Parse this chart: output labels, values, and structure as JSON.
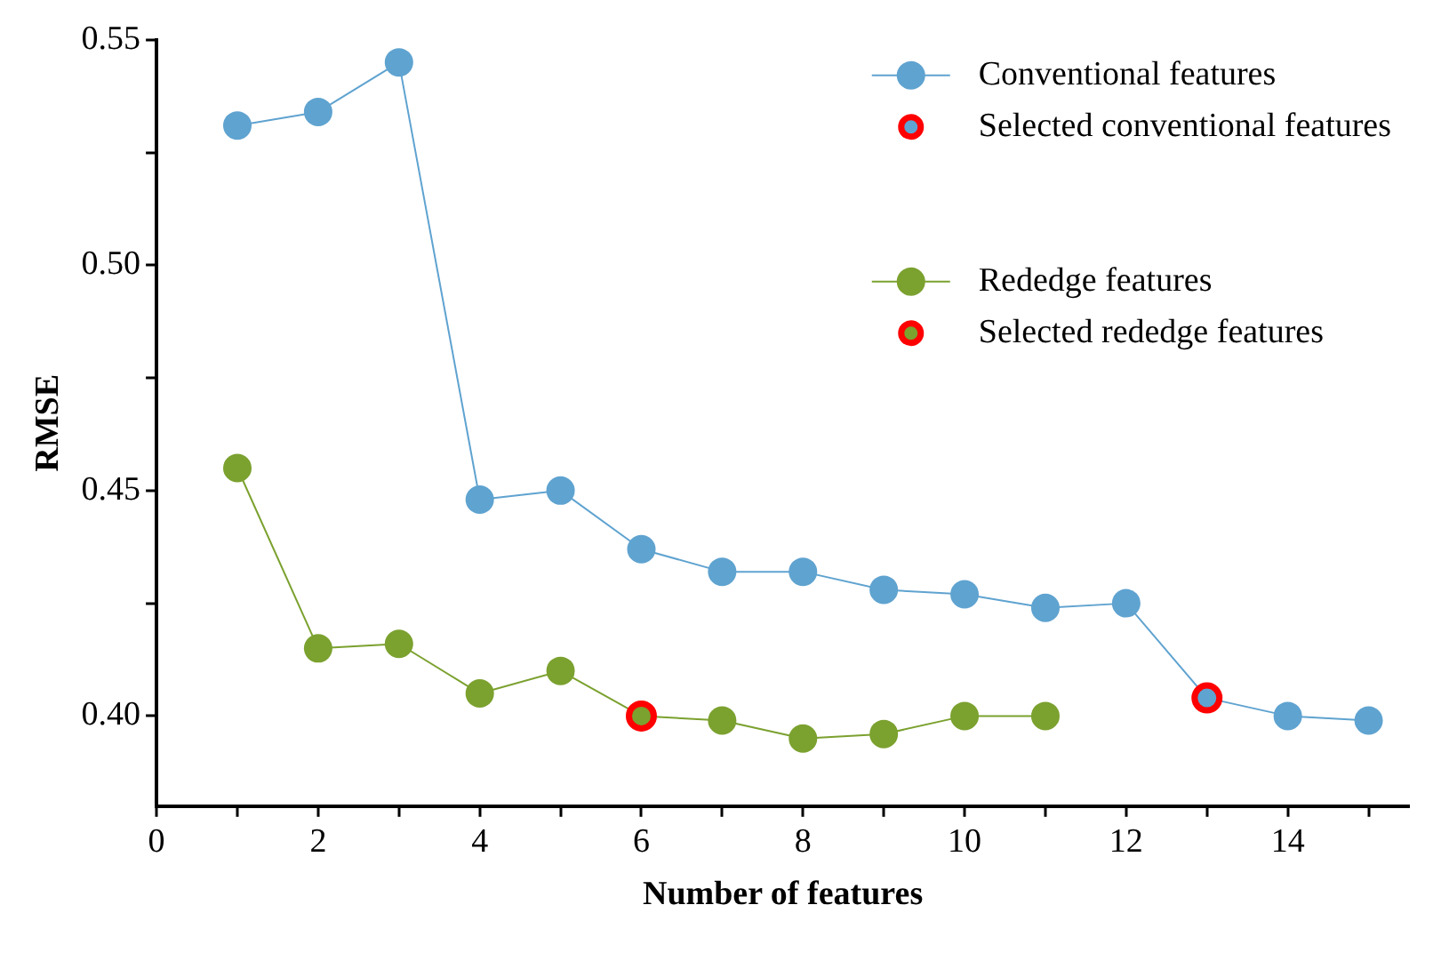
{
  "chart_data": {
    "type": "line",
    "xlabel": "Number of features",
    "ylabel": "RMSE",
    "x": [
      1,
      2,
      3,
      4,
      5,
      6,
      7,
      8,
      9,
      10,
      11,
      12,
      13,
      14,
      15
    ],
    "series": [
      {
        "name": "Conventional features",
        "color": "#5fa3d0",
        "values": [
          0.531,
          0.534,
          0.545,
          0.448,
          0.45,
          0.437,
          0.432,
          0.432,
          0.428,
          0.427,
          0.424,
          0.425,
          0.404,
          0.4,
          0.399
        ]
      },
      {
        "name": "Selected conventional features",
        "type": "scatter",
        "color": "#ff0000",
        "x": [
          13
        ],
        "values": [
          0.404
        ]
      },
      {
        "name": "Rededge features",
        "color": "#7ba12f",
        "x": [
          1,
          2,
          3,
          4,
          5,
          6,
          7,
          8,
          9,
          10,
          11
        ],
        "values": [
          0.455,
          0.415,
          0.416,
          0.405,
          0.41,
          0.4,
          0.399,
          0.395,
          0.396,
          0.4,
          0.4
        ]
      },
      {
        "name": "Selected rededge features",
        "type": "scatter",
        "color": "#ff0000",
        "x": [
          6
        ],
        "values": [
          0.4
        ]
      }
    ],
    "xlim": [
      0,
      15.5
    ],
    "xticks": [
      0,
      {
        "value": 1,
        "label": null
      },
      2,
      {
        "value": 3,
        "label": null
      },
      4,
      {
        "value": 5,
        "label": null
      },
      6,
      {
        "value": 7,
        "label": null
      },
      8,
      {
        "value": 9,
        "label": null
      },
      10,
      {
        "value": 11,
        "label": null
      },
      12,
      {
        "value": 13,
        "label": null
      },
      14,
      {
        "value": 15,
        "label": null
      }
    ],
    "ylim": [
      0.38,
      0.55
    ],
    "yticks": [
      {
        "value": 0.4,
        "label": "0.40"
      },
      {
        "value": 0.425,
        "label": null
      },
      {
        "value": 0.45,
        "label": "0.45"
      },
      {
        "value": 0.475,
        "label": null
      },
      {
        "value": 0.5,
        "label": "0.50"
      },
      {
        "value": 0.525,
        "label": null
      },
      {
        "value": 0.55,
        "label": "0.55"
      }
    ],
    "grid": false,
    "legend": "top right",
    "marker": "circle",
    "line_style": "solid"
  }
}
